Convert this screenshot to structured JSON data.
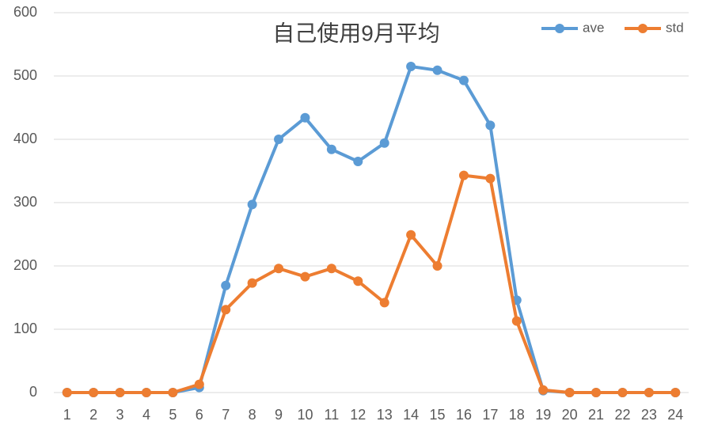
{
  "chart_data": {
    "type": "line",
    "title": "自己使用9月平均",
    "categories": [
      "1",
      "2",
      "3",
      "4",
      "5",
      "6",
      "7",
      "8",
      "9",
      "10",
      "11",
      "12",
      "13",
      "14",
      "15",
      "16",
      "17",
      "18",
      "19",
      "20",
      "21",
      "22",
      "23",
      "24"
    ],
    "series": [
      {
        "name": "ave",
        "color": "#5b9bd5",
        "values": [
          0,
          0,
          0,
          0,
          0,
          8,
          169,
          297,
          400,
          434,
          384,
          365,
          394,
          515,
          509,
          493,
          422,
          146,
          3,
          0,
          0,
          0,
          0,
          0
        ]
      },
      {
        "name": "std",
        "color": "#ed7d31",
        "values": [
          0,
          0,
          0,
          0,
          0,
          13,
          131,
          173,
          196,
          183,
          196,
          176,
          142,
          249,
          200,
          343,
          338,
          113,
          4,
          0,
          0,
          0,
          0,
          0
        ]
      }
    ],
    "ylim": [
      0,
      600
    ],
    "yticks": [
      0,
      100,
      200,
      300,
      400,
      500,
      600
    ],
    "grid": true,
    "legend": "top-right"
  }
}
